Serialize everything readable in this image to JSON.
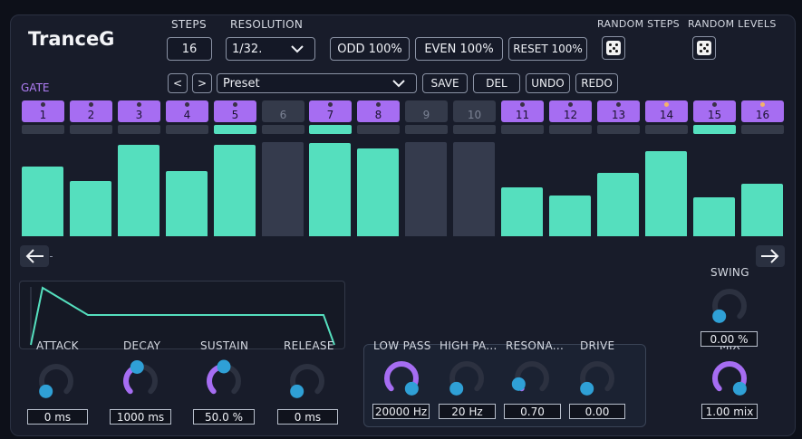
{
  "app": {
    "title": "TranceG"
  },
  "steps": {
    "label": "STEPS",
    "value": "16"
  },
  "resolution": {
    "label": "RESOLUTION",
    "value": "1/32."
  },
  "buttons": {
    "odd": "ODD 100%",
    "even": "EVEN 100%",
    "reset": "RESET 100%"
  },
  "random": {
    "steps_label": "RANDOM STEPS",
    "levels_label": "RANDOM LEVELS"
  },
  "preset": {
    "prev": "<",
    "next": ">",
    "name": "Preset",
    "save": "SAVE",
    "del": "DEL",
    "undo": "UNDO",
    "redo": "REDO"
  },
  "gate_label": "GATE",
  "step_buttons": [
    {
      "label": "1",
      "active": true,
      "marker": "dark"
    },
    {
      "label": "2",
      "active": true,
      "marker": "dark"
    },
    {
      "label": "3",
      "active": true,
      "marker": "dark"
    },
    {
      "label": "4",
      "active": true,
      "marker": "dark"
    },
    {
      "label": "5",
      "active": true,
      "marker": "dark"
    },
    {
      "label": "6",
      "active": false,
      "marker": "none"
    },
    {
      "label": "7",
      "active": true,
      "marker": "dark"
    },
    {
      "label": "8",
      "active": true,
      "marker": "dark"
    },
    {
      "label": "9",
      "active": false,
      "marker": "none"
    },
    {
      "label": "10",
      "active": false,
      "marker": "none"
    },
    {
      "label": "11",
      "active": true,
      "marker": "dark"
    },
    {
      "label": "12",
      "active": true,
      "marker": "dark"
    },
    {
      "label": "13",
      "active": true,
      "marker": "dark"
    },
    {
      "label": "14",
      "active": true,
      "marker": "orange"
    },
    {
      "label": "15",
      "active": true,
      "marker": "dark"
    },
    {
      "label": "16",
      "active": true,
      "marker": "orange"
    }
  ],
  "gate_lights": [
    false,
    false,
    false,
    false,
    true,
    false,
    true,
    false,
    false,
    false,
    false,
    false,
    false,
    false,
    true,
    false
  ],
  "levels": [
    0.74,
    0.59,
    0.97,
    0.69,
    0.97,
    1.0,
    0.99,
    0.93,
    1.0,
    1.0,
    0.52,
    0.43,
    0.67,
    0.9,
    0.41,
    0.56
  ],
  "level_active": [
    true,
    true,
    true,
    true,
    true,
    false,
    true,
    true,
    false,
    false,
    true,
    true,
    true,
    true,
    true,
    true
  ],
  "nav": {
    "left": "←",
    "right": "→"
  },
  "envelope": {
    "attack": {
      "label": "ATTACK",
      "value": "0 ms",
      "level": 0.0
    },
    "decay": {
      "label": "DECAY",
      "value": "1000 ms",
      "level": 0.45
    },
    "sustain": {
      "label": "SUSTAIN",
      "value": "50.0 %",
      "level": 0.5
    },
    "release": {
      "label": "RELEASE",
      "value": "0 ms",
      "level": 0.0
    }
  },
  "filter": {
    "low_pass": {
      "label": "LOW PASS",
      "value": "20000 Hz",
      "level": 1.0
    },
    "high_pass": {
      "label": "HIGH PA...",
      "value": "20 Hz",
      "level": 0.0
    },
    "resonance": {
      "label": "RESONA...",
      "value": "0.70",
      "level": 0.08
    },
    "drive": {
      "label": "DRIVE",
      "value": "0.00",
      "level": 0.0
    }
  },
  "swing": {
    "label": "SWING",
    "value": "0.00 %",
    "level": 0.0
  },
  "mix": {
    "label": "MIX",
    "value": "1.00 mix",
    "level": 1.0
  },
  "colors": {
    "accent": "#a66df2",
    "teal": "#55dfbe",
    "knob_dot": "#2fa0d6",
    "track": "#2c3140",
    "background": "#181c2a"
  },
  "icons": {
    "dice": "dice-icon",
    "chevron": "chevron-down-icon",
    "arrow_left": "arrow-left-icon",
    "arrow_right": "arrow-right-icon"
  }
}
